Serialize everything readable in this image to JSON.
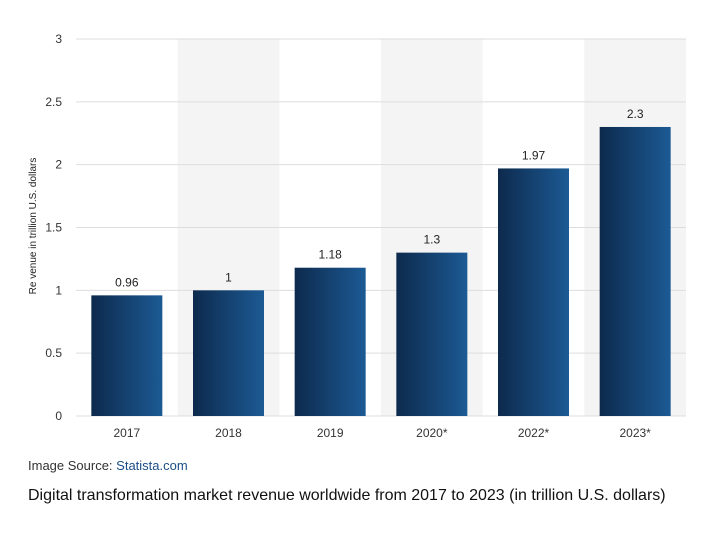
{
  "chart_data": {
    "type": "bar",
    "categories": [
      "2017",
      "2018",
      "2019",
      "2020*",
      "2022*",
      "2023*"
    ],
    "values": [
      0.96,
      1,
      1.18,
      1.3,
      1.97,
      2.3
    ],
    "data_labels": [
      "0.96",
      "1",
      "1.18",
      "1.3",
      "1.97",
      "2.3"
    ],
    "ylabel": "Re venue in trillion U.S. dollars",
    "ylim": [
      0,
      3
    ],
    "yticks": [
      0,
      0.5,
      1,
      1.5,
      2,
      2.5,
      3
    ],
    "grid": true,
    "colors": {
      "bar_dark": "#0d2a4d",
      "bar_light": "#1c5a94",
      "band": "#f4f4f4",
      "grid": "#dddddd"
    }
  },
  "source": {
    "prefix": "Image Source: ",
    "name": "Statista.com"
  },
  "caption": "Digital transformation market revenue worldwide from 2017 to 2023 (in trillion U.S. dollars)"
}
